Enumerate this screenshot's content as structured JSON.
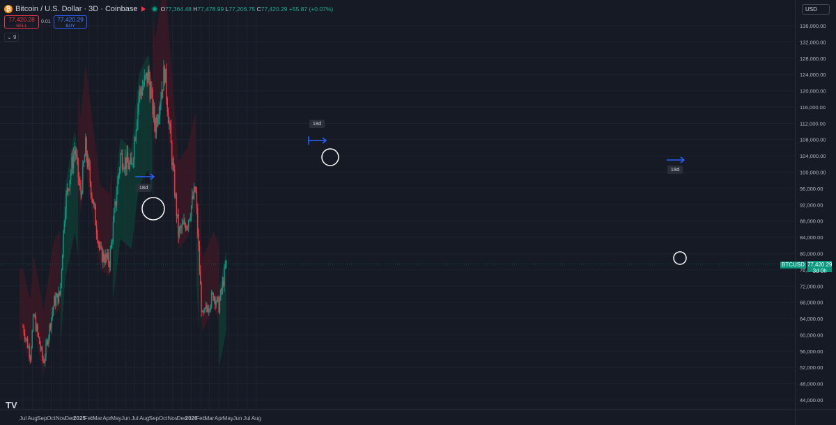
{
  "header": {
    "symbol_title": "Bitcoin / U.S. Dollar · 3D · Coinbase",
    "open_label": "O",
    "open": "77,364.48",
    "high_label": "H",
    "high": "77,478.99",
    "low_label": "L",
    "low": "77,206.75",
    "close_label": "C",
    "close": "77,420.29",
    "change": "+55.87 (+0.07%)"
  },
  "trade": {
    "sell_price": "77,420.28",
    "sell_label": "SELL",
    "spread": "0.01",
    "buy_price": "77,420.29",
    "buy_label": "BUY"
  },
  "indicator_count": "9",
  "currency": "USD",
  "price_tag": {
    "symbol": "BTCUSD",
    "price": "77,420.29",
    "countdown": "3d 0h"
  },
  "annotations": {
    "label_1": "18d",
    "label_2": "18d",
    "label_3": "18d"
  },
  "colors": {
    "up": "#089981",
    "down": "#f23645",
    "band_bull": "#0f3b32",
    "band_bear": "#3a1a26",
    "grid": "#1f2330",
    "background": "#161a25"
  },
  "chart_data": {
    "type": "candlestick",
    "ylim": [
      44000,
      138000
    ],
    "y_ticks": [
      "44,000.00",
      "48,000.00",
      "52,000.00",
      "56,000.00",
      "60,000.00",
      "64,000.00",
      "68,000.00",
      "72,000.00",
      "76,000.00",
      "80,000.00",
      "84,000.00",
      "88,000.00",
      "92,000.00",
      "96,000.00",
      "100,000.00",
      "104,000.00",
      "108,000.00",
      "112,000.00",
      "116,000.00",
      "120,000.00",
      "124,000.00",
      "128,000.00",
      "132,000.00",
      "136,000.00"
    ],
    "x_ticks": [
      "Jul",
      "Aug",
      "Sep",
      "Oct",
      "Nov",
      "Dec",
      "2025",
      "Feb",
      "Mar",
      "Apr",
      "May",
      "Jun",
      "Jul",
      "Aug",
      "Sep",
      "Oct",
      "Nov",
      "Dec",
      "2026",
      "Feb",
      "Mar",
      "Apr",
      "May",
      "Jun",
      "Jul",
      "Aug"
    ],
    "price_path": [
      {
        "date": "2024-07-01",
        "close": 62000
      },
      {
        "date": "2024-07-25",
        "close": 55000
      },
      {
        "date": "2024-08-05",
        "close": 65000
      },
      {
        "date": "2024-09-06",
        "close": 53000
      },
      {
        "date": "2024-10-10",
        "close": 68000
      },
      {
        "date": "2024-10-30",
        "close": 70000
      },
      {
        "date": "2024-11-15",
        "close": 92000
      },
      {
        "date": "2024-12-17",
        "close": 106000
      },
      {
        "date": "2025-01-05",
        "close": 94000
      },
      {
        "date": "2025-01-21",
        "close": 106000
      },
      {
        "date": "2025-03-10",
        "close": 80000
      },
      {
        "date": "2025-04-09",
        "close": 78000
      },
      {
        "date": "2025-05-15",
        "close": 104000
      },
      {
        "date": "2025-06-20",
        "close": 101000
      },
      {
        "date": "2025-07-14",
        "close": 119000
      },
      {
        "date": "2025-08-14",
        "close": 124000
      },
      {
        "date": "2025-09-05",
        "close": 111000
      },
      {
        "date": "2025-10-06",
        "close": 125000
      },
      {
        "date": "2025-11-20",
        "close": 85000
      },
      {
        "date": "2025-12-20",
        "close": 88000
      },
      {
        "date": "2026-01-15",
        "close": 96000
      },
      {
        "date": "2026-02-05",
        "close": 64000
      },
      {
        "date": "2026-03-15",
        "close": 70000
      },
      {
        "date": "2026-04-01",
        "close": 67000
      },
      {
        "date": "2026-04-25",
        "close": 77420
      }
    ],
    "band_segments": [
      {
        "from": "2024-06-20",
        "to": "2024-11-01",
        "trend": "bearish"
      },
      {
        "from": "2024-11-01",
        "to": "2024-12-28",
        "trend": "bullish"
      },
      {
        "from": "2024-12-28",
        "to": "2025-04-20",
        "trend": "bearish"
      },
      {
        "from": "2025-04-20",
        "to": "2025-08-28",
        "trend": "bullish"
      },
      {
        "from": "2025-08-28",
        "to": "2026-01-18",
        "trend": "bearish"
      },
      {
        "from": "2026-01-18",
        "to": "2026-01-28",
        "trend": "bullish"
      },
      {
        "from": "2026-01-28",
        "to": "2026-04-01",
        "trend": "bearish"
      },
      {
        "from": "2026-04-01",
        "to": "2026-04-25",
        "trend": "bullish"
      }
    ],
    "last_price": 77420.29
  }
}
